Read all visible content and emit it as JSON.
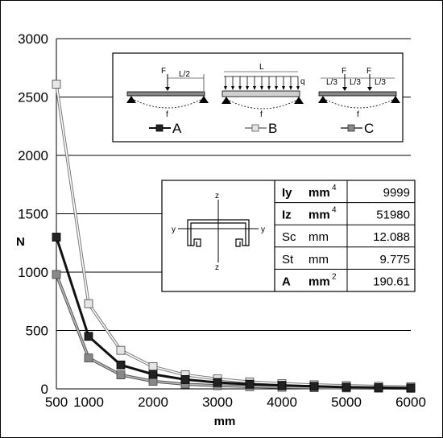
{
  "chart_data": {
    "type": "line",
    "xlabel": "mm",
    "ylabel": "N",
    "xlim": [
      500,
      6000
    ],
    "ylim": [
      0,
      3000
    ],
    "x_ticks": [
      "500",
      "1000",
      "2000",
      "3000",
      "4000",
      "5000",
      "6000"
    ],
    "y_ticks": [
      "0",
      "500",
      "1000",
      "1500",
      "2000",
      "2500",
      "3000"
    ],
    "grid": "horizontal",
    "x": [
      500,
      1000,
      1500,
      2000,
      2500,
      3000,
      3500,
      4000,
      4500,
      5000,
      5500,
      6000
    ],
    "series": [
      {
        "name": "A",
        "color": "#111111",
        "marker": "#222222",
        "values": [
          1300,
          450,
          205,
          125,
          80,
          55,
          40,
          30,
          22,
          15,
          11,
          8
        ]
      },
      {
        "name": "B",
        "color": "#999999",
        "marker": "#e6e6e6",
        "values": [
          2610,
          730,
          330,
          190,
          120,
          85,
          60,
          45,
          35,
          28,
          22,
          18
        ]
      },
      {
        "name": "C",
        "color": "#666666",
        "marker": "#888888",
        "values": [
          980,
          265,
          120,
          65,
          40,
          28,
          20,
          14,
          10,
          8,
          6,
          5
        ]
      }
    ]
  },
  "legend_panel": {
    "case_a": {
      "load": "F",
      "dim": "L/2",
      "deflection": "f",
      "label": "A"
    },
    "case_b": {
      "dim": "L",
      "load": "q",
      "deflection": "f",
      "label": "B"
    },
    "case_c": {
      "load1": "F",
      "load2": "F",
      "dim1": "L/3",
      "dim2": "L/3",
      "dim3": "L/3",
      "deflection": "f",
      "label": "C"
    }
  },
  "section": {
    "axis_z": "z",
    "axis_y": "y",
    "rows": [
      {
        "sym": "Iy",
        "unit": "mm",
        "sup": "4",
        "value": "9999"
      },
      {
        "sym": "Iz",
        "unit": "mm",
        "sup": "4",
        "value": "51980"
      },
      {
        "sym": "Sc",
        "unit": "mm",
        "sup": "",
        "value": "12.088"
      },
      {
        "sym": "St",
        "unit": "mm",
        "sup": "",
        "value": "9.775"
      },
      {
        "sym": "A",
        "unit": "mm",
        "sup": "2",
        "value": "190.61"
      }
    ]
  }
}
